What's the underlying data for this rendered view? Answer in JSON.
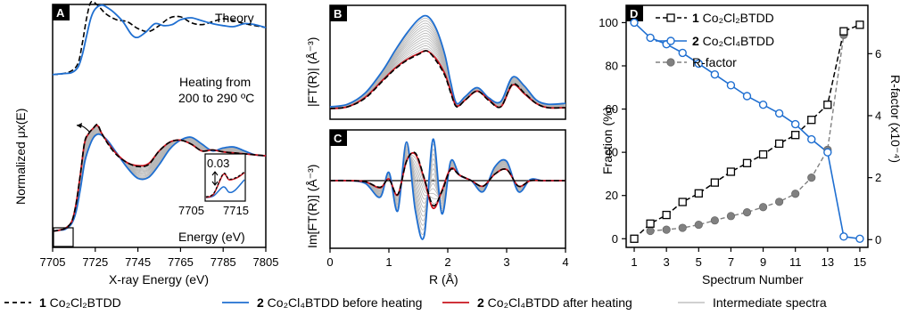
{
  "colors": {
    "black": "#000000",
    "blue": "#1f6fd1",
    "red": "#c8141e",
    "gray": "#b5b5b5",
    "rgray": "#808080"
  },
  "panels": {
    "a": {
      "letter": "A",
      "ylabel": "Normalized μx(E)",
      "xlabel": "X-ray Energy (eV)",
      "theory": "Theory",
      "heating1": "Heating from",
      "heating2": "200 to 290 ºC",
      "inset": {
        "value": "0.03",
        "tick1": "7705",
        "tick2": "7715",
        "xlabel": "Energy (eV)"
      }
    },
    "b": {
      "letter": "B",
      "ylabel": "|FT(R)| (Å⁻³)"
    },
    "c": {
      "letter": "C",
      "ylabel": "Im[FT(R)] (Å⁻³)",
      "xlabel": "R (Å)"
    },
    "d": {
      "letter": "D",
      "ylabel_left": "Fraction (%)",
      "ylabel_right": "R-factor (x10⁻⁴)",
      "xlabel": "Spectrum Number"
    }
  },
  "legend_bottom": [
    {
      "num": "1",
      "text": "Co₂Cl₂BTDD",
      "style": "dashed-black"
    },
    {
      "num": "2",
      "text": "Co₂Cl₄BTDD before heating",
      "style": "blue"
    },
    {
      "num": "2",
      "text": "Co₂Cl₄BTDD after heating",
      "style": "red"
    },
    {
      "num": "",
      "text": "Intermediate spectra",
      "style": "gray"
    }
  ],
  "chart_data": [
    {
      "type": "line",
      "panel": "A",
      "xlabel": "X-ray Energy (eV)",
      "ylabel": "Normalized μx(E)",
      "xlim": [
        7705,
        7805
      ],
      "xticks": [
        7705,
        7725,
        7745,
        7765,
        7785,
        7805
      ],
      "series": [
        {
          "name": "Theory 1",
          "x": [
            7705,
            7710,
            7714,
            7717,
            7719,
            7721,
            7723,
            7726,
            7730,
            7735,
            7740,
            7745,
            7750,
            7755,
            7760,
            7765,
            7770,
            7775,
            7780,
            7785,
            7790,
            7795,
            7800,
            7805
          ],
          "y": [
            1.62,
            1.63,
            1.66,
            1.74,
            1.95,
            2.2,
            2.36,
            2.33,
            2.24,
            2.18,
            2.16,
            2.09,
            2.06,
            2.12,
            2.2,
            2.21,
            2.15,
            2.13,
            2.16,
            2.19,
            2.17,
            2.14,
            2.12,
            2.1
          ]
        },
        {
          "name": "Theory 2",
          "x": [
            7705,
            7710,
            7714,
            7717,
            7719,
            7721,
            7723,
            7725,
            7728,
            7731,
            7734,
            7738,
            7742,
            7745,
            7749,
            7753,
            7757,
            7761,
            7765,
            7770,
            7775,
            7780,
            7785,
            7790,
            7795,
            7800,
            7805
          ],
          "y": [
            1.62,
            1.63,
            1.64,
            1.7,
            1.83,
            2.02,
            2.2,
            2.29,
            2.33,
            2.3,
            2.25,
            2.16,
            2.03,
            2.0,
            2.06,
            2.14,
            2.12,
            2.13,
            2.18,
            2.2,
            2.17,
            2.14,
            2.12,
            2.11,
            2.14,
            2.13,
            2.1
          ]
        },
        {
          "name": "1",
          "x": [
            7705,
            7708,
            7711,
            7714,
            7716,
            7718,
            7720,
            7722,
            7724,
            7726,
            7728,
            7731,
            7735,
            7740,
            7745,
            7750,
            7755,
            7760,
            7765,
            7770,
            7775,
            7780,
            7785,
            7790,
            7795,
            7800,
            7805
          ],
          "y": [
            0.02,
            0.03,
            0.05,
            0.12,
            0.3,
            0.6,
            0.93,
            1.02,
            1.07,
            1.11,
            1.02,
            0.91,
            0.8,
            0.72,
            0.68,
            0.7,
            0.84,
            0.93,
            0.95,
            0.91,
            0.84,
            0.85,
            0.83,
            0.82,
            0.81,
            0.8,
            0.79
          ]
        },
        {
          "name": "2 before",
          "x": [
            7705,
            7708,
            7711,
            7714,
            7716,
            7718,
            7720,
            7722,
            7724,
            7726,
            7728,
            7731,
            7735,
            7740,
            7745,
            7750,
            7755,
            7760,
            7765,
            7770,
            7775,
            7780,
            7785,
            7790,
            7795,
            7800,
            7805
          ],
          "y": [
            0.02,
            0.03,
            0.04,
            0.1,
            0.22,
            0.45,
            0.72,
            0.87,
            0.97,
            1.01,
            1.0,
            0.94,
            0.82,
            0.67,
            0.56,
            0.57,
            0.7,
            0.86,
            0.95,
            0.98,
            0.91,
            0.84,
            0.87,
            0.88,
            0.84,
            0.8,
            0.79
          ]
        },
        {
          "name": "2 after",
          "x": [
            7705,
            7708,
            7711,
            7714,
            7716,
            7718,
            7720,
            7722,
            7724,
            7726,
            7728,
            7731,
            7735,
            7740,
            7745,
            7750,
            7755,
            7760,
            7765,
            7770,
            7775,
            7780,
            7785,
            7790,
            7795,
            7800,
            7805
          ],
          "y": [
            0.02,
            0.03,
            0.05,
            0.12,
            0.3,
            0.6,
            0.92,
            1.02,
            1.07,
            1.1,
            1.02,
            0.92,
            0.81,
            0.72,
            0.69,
            0.71,
            0.84,
            0.93,
            0.95,
            0.91,
            0.84,
            0.85,
            0.83,
            0.82,
            0.81,
            0.8,
            0.79
          ]
        }
      ]
    },
    {
      "type": "line",
      "panel": "B",
      "ylabel": "|FT(R)| (Å⁻³)",
      "xlim": [
        0,
        4
      ],
      "series": [
        {
          "name": "1",
          "x": [
            0,
            0.3,
            0.6,
            0.9,
            1.1,
            1.3,
            1.5,
            1.65,
            1.8,
            1.95,
            2.05,
            2.15,
            2.3,
            2.5,
            2.7,
            2.9,
            3.1,
            3.3,
            3.5,
            3.7,
            4.0
          ],
          "y": [
            0.0,
            0.02,
            0.12,
            0.32,
            0.45,
            0.55,
            0.62,
            0.66,
            0.55,
            0.38,
            0.18,
            0.02,
            0.1,
            0.2,
            0.09,
            0.02,
            0.28,
            0.18,
            0.06,
            0.01,
            0.01
          ]
        },
        {
          "name": "2 before",
          "x": [
            0,
            0.3,
            0.6,
            0.9,
            1.1,
            1.3,
            1.5,
            1.65,
            1.8,
            1.95,
            2.05,
            2.15,
            2.3,
            2.5,
            2.7,
            2.9,
            3.1,
            3.3,
            3.5,
            3.7,
            4.0
          ],
          "y": [
            0.02,
            0.05,
            0.18,
            0.44,
            0.66,
            0.86,
            1.02,
            1.06,
            0.92,
            0.62,
            0.3,
            0.06,
            0.14,
            0.24,
            0.12,
            0.08,
            0.36,
            0.26,
            0.1,
            0.05,
            0.06
          ]
        },
        {
          "name": "2 after",
          "x": [
            0,
            0.3,
            0.6,
            0.9,
            1.1,
            1.3,
            1.5,
            1.65,
            1.8,
            1.95,
            2.05,
            2.15,
            2.3,
            2.5,
            2.7,
            2.9,
            3.1,
            3.3,
            3.5,
            3.7,
            4.0
          ],
          "y": [
            0.0,
            0.02,
            0.13,
            0.33,
            0.46,
            0.56,
            0.63,
            0.66,
            0.57,
            0.4,
            0.2,
            0.03,
            0.1,
            0.2,
            0.1,
            0.02,
            0.27,
            0.17,
            0.06,
            0.01,
            0.01
          ]
        }
      ]
    },
    {
      "type": "line",
      "panel": "C",
      "xlabel": "R (Å)",
      "ylabel": "Im[FT(R)] (Å⁻³)",
      "xlim": [
        0,
        4
      ],
      "xticks": [
        0,
        1,
        2,
        3,
        4
      ],
      "series": [
        {
          "name": "1",
          "x": [
            0,
            0.3,
            0.6,
            0.85,
            1.0,
            1.15,
            1.3,
            1.45,
            1.6,
            1.75,
            1.9,
            2.05,
            2.2,
            2.4,
            2.6,
            2.8,
            3.0,
            3.2,
            3.4,
            3.6,
            3.8,
            4.0
          ],
          "y": [
            0.0,
            0.0,
            -0.02,
            -0.12,
            0.02,
            -0.25,
            0.35,
            0.5,
            0.05,
            -0.45,
            -0.2,
            0.2,
            0.1,
            0.0,
            -0.1,
            0.12,
            0.2,
            -0.1,
            0.0,
            0.0,
            0.0,
            0.0
          ]
        },
        {
          "name": "2 before",
          "x": [
            0,
            0.3,
            0.6,
            0.85,
            1.0,
            1.15,
            1.3,
            1.45,
            1.6,
            1.75,
            1.9,
            2.05,
            2.2,
            2.4,
            2.6,
            2.8,
            3.0,
            3.2,
            3.4,
            3.6,
            3.8,
            4.0
          ],
          "y": [
            0.0,
            0.0,
            -0.05,
            -0.3,
            0.15,
            -0.55,
            0.7,
            -0.55,
            -1.0,
            0.75,
            -0.6,
            0.35,
            0.1,
            0.0,
            -0.2,
            0.25,
            0.35,
            -0.2,
            0.02,
            0.0,
            0.0,
            0.0
          ]
        },
        {
          "name": "2 after",
          "x": [
            0,
            0.3,
            0.6,
            0.85,
            1.0,
            1.15,
            1.3,
            1.45,
            1.6,
            1.75,
            1.9,
            2.05,
            2.2,
            2.4,
            2.6,
            2.8,
            3.0,
            3.2,
            3.4,
            3.6,
            3.8,
            4.0
          ],
          "y": [
            0.0,
            0.0,
            -0.02,
            -0.13,
            0.03,
            -0.26,
            0.36,
            0.48,
            0.03,
            -0.5,
            -0.18,
            0.22,
            0.1,
            0.0,
            -0.1,
            0.12,
            0.2,
            -0.1,
            0.0,
            0.0,
            0.0,
            0.0
          ]
        }
      ]
    },
    {
      "type": "line",
      "panel": "D",
      "xlabel": "Spectrum Number",
      "ylabel": "Fraction (%)",
      "y2label": "R-factor (x10⁻⁴)",
      "xlim": [
        0.5,
        15.5
      ],
      "ylim": [
        -4,
        108
      ],
      "y2lim": [
        -0.25,
        7.56
      ],
      "xticks": [
        1,
        3,
        5,
        7,
        9,
        11,
        13,
        15
      ],
      "yticks": [
        0,
        20,
        40,
        60,
        80,
        100
      ],
      "y2ticks": [
        0,
        2,
        4,
        6
      ],
      "legend": {
        "position": "top-left",
        "entries": [
          "1 Co₂Cl₂BTDD",
          "2 Co₂Cl₄BTDD",
          "R-factor"
        ]
      },
      "series": [
        {
          "name": "1 Co₂Cl₂BTDD",
          "x": [
            1,
            2,
            3,
            4,
            5,
            6,
            7,
            8,
            9,
            10,
            11,
            12,
            13,
            14,
            15
          ],
          "y": [
            0,
            7,
            11,
            17,
            21,
            26,
            31,
            35,
            39,
            44,
            48,
            55,
            62,
            96,
            99
          ]
        },
        {
          "name": "2 Co₂Cl₄BTDD",
          "x": [
            1,
            2,
            3,
            4,
            5,
            6,
            7,
            8,
            9,
            10,
            11,
            12,
            13,
            14,
            15
          ],
          "y": [
            100,
            93,
            90,
            86,
            81,
            76,
            71,
            66,
            62,
            58,
            53,
            46,
            40,
            1,
            0
          ]
        },
        {
          "name": "R-factor",
          "axis": "right",
          "x": [
            2,
            3,
            4,
            5,
            6,
            7,
            8,
            9,
            10,
            11,
            12,
            13,
            14
          ],
          "y": [
            0.28,
            0.32,
            0.38,
            0.48,
            0.62,
            0.76,
            0.88,
            1.05,
            1.22,
            1.48,
            2.0,
            2.9,
            6.6
          ]
        }
      ]
    }
  ]
}
